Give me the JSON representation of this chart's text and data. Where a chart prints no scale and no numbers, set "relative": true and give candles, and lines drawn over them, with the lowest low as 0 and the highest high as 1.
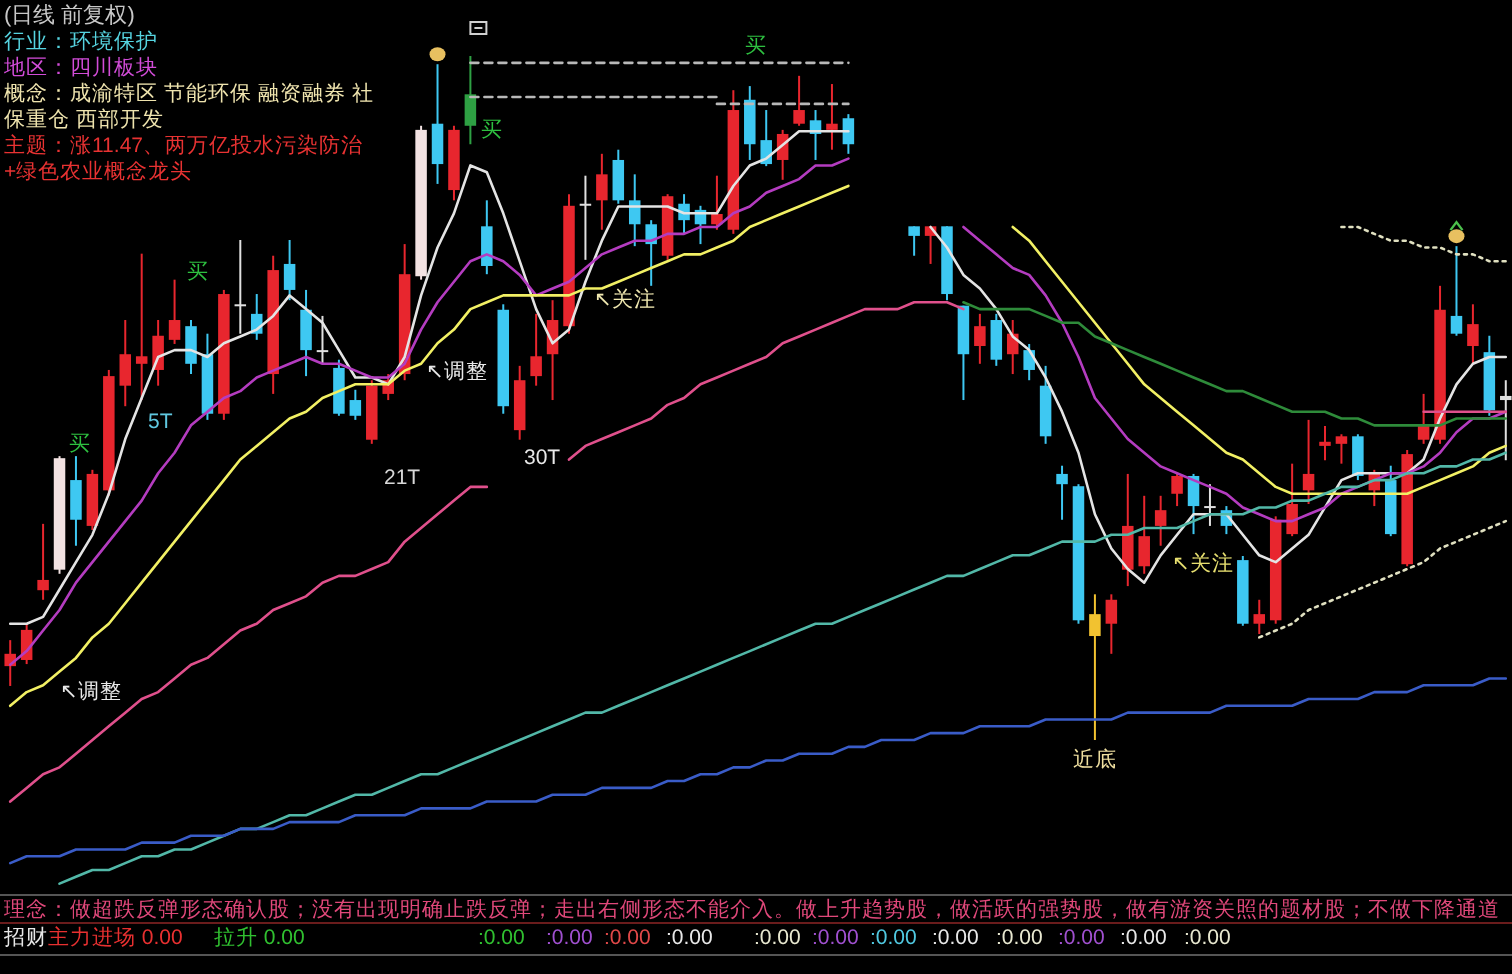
{
  "chart_data": {
    "type": "candlestick",
    "title": "(日线 前复权)",
    "relative": true,
    "categories": [
      null,
      null,
      null,
      null,
      null,
      null,
      null,
      null,
      null,
      null,
      null,
      null,
      null,
      null,
      null,
      null,
      null,
      null,
      null,
      null,
      null,
      null,
      null,
      null,
      null,
      null,
      null,
      null,
      null,
      null,
      null,
      null,
      null,
      null,
      null,
      null,
      null,
      null,
      null,
      null,
      null,
      null,
      null,
      null,
      null,
      null,
      null,
      null,
      null,
      null,
      null,
      null,
      null,
      null,
      null,
      null,
      null,
      null,
      null,
      null,
      null,
      null,
      null,
      null,
      null,
      null,
      null,
      null,
      null,
      null,
      null,
      null,
      null,
      null,
      null,
      null,
      null,
      null,
      null,
      null,
      null,
      null,
      null,
      null,
      null,
      null,
      null,
      null,
      null,
      null,
      null,
      null
    ],
    "ohlc": [
      [
        0.108,
        0.146,
        0.079,
        0.126
      ],
      [
        0.117,
        0.17,
        0.111,
        0.161
      ],
      [
        0.219,
        0.316,
        0.205,
        0.234
      ],
      [
        0.249,
        0.415,
        0.243,
        0.412
      ],
      [
        0.38,
        0.415,
        0.284,
        0.322
      ],
      [
        0.313,
        0.395,
        0.307,
        0.389
      ],
      [
        0.365,
        0.541,
        0.357,
        0.532
      ],
      [
        0.518,
        0.614,
        0.488,
        0.564
      ],
      [
        0.55,
        0.711,
        0.497,
        0.561
      ],
      [
        0.541,
        0.614,
        0.518,
        0.591
      ],
      [
        0.585,
        0.673,
        0.579,
        0.614
      ],
      [
        0.605,
        0.614,
        0.535,
        0.55
      ],
      [
        0.564,
        0.594,
        0.468,
        0.477
      ],
      [
        0.477,
        0.658,
        0.468,
        0.652
      ],
      [
        0.637,
        0.731,
        0.594,
        0.637
      ],
      [
        0.623,
        0.652,
        0.585,
        0.594
      ],
      [
        0.535,
        0.708,
        0.506,
        0.687
      ],
      [
        0.696,
        0.731,
        0.643,
        0.658
      ],
      [
        0.629,
        0.658,
        0.532,
        0.57
      ],
      [
        0.57,
        0.62,
        0.55,
        0.57
      ],
      [
        0.544,
        0.556,
        0.474,
        0.477
      ],
      [
        0.497,
        0.512,
        0.468,
        0.474
      ],
      [
        0.439,
        0.526,
        0.433,
        0.518
      ],
      [
        0.506,
        0.535,
        0.497,
        0.526
      ],
      [
        0.535,
        0.725,
        0.526,
        0.681
      ],
      [
        0.678,
        0.898,
        0.673,
        0.892
      ],
      [
        0.901,
        0.988,
        0.813,
        0.842
      ],
      [
        0.804,
        0.898,
        0.789,
        0.892
      ],
      [
        0.944,
        1.0,
        0.871,
        0.898
      ],
      [
        0.751,
        0.789,
        0.681,
        0.693
      ],
      [
        0.629,
        0.637,
        0.477,
        0.488
      ],
      [
        0.453,
        0.547,
        0.439,
        0.526
      ],
      [
        0.532,
        0.623,
        0.518,
        0.561
      ],
      [
        0.564,
        0.643,
        0.497,
        0.614
      ],
      [
        0.605,
        0.798,
        0.594,
        0.781
      ],
      [
        0.784,
        0.825,
        0.702,
        0.784
      ],
      [
        0.789,
        0.857,
        0.746,
        0.827
      ],
      [
        0.848,
        0.863,
        0.784,
        0.789
      ],
      [
        0.789,
        0.827,
        0.722,
        0.754
      ],
      [
        0.754,
        0.76,
        0.664,
        0.725
      ],
      [
        0.708,
        0.798,
        0.702,
        0.795
      ],
      [
        0.784,
        0.798,
        0.74,
        0.76
      ],
      [
        0.775,
        0.781,
        0.725,
        0.754
      ],
      [
        0.754,
        0.825,
        0.746,
        0.769
      ],
      [
        0.746,
        0.95,
        0.74,
        0.921
      ],
      [
        0.936,
        0.956,
        0.848,
        0.871
      ],
      [
        0.877,
        0.921,
        0.839,
        0.842
      ],
      [
        0.848,
        0.892,
        0.819,
        0.886
      ],
      [
        0.901,
        0.971,
        0.898,
        0.921
      ],
      [
        0.906,
        0.921,
        0.848,
        0.886
      ],
      [
        0.892,
        0.959,
        0.863,
        0.901
      ],
      [
        0.909,
        0.915,
        0.857,
        0.871
      ],
      null,
      null,
      null,
      [
        0.751,
        0.751,
        0.708,
        0.737
      ],
      [
        0.737,
        0.751,
        0.696,
        0.751
      ],
      [
        0.751,
        0.751,
        0.643,
        0.652
      ],
      [
        0.635,
        0.635,
        0.497,
        0.564
      ],
      [
        0.576,
        0.623,
        0.55,
        0.605
      ],
      [
        0.614,
        0.623,
        0.547,
        0.556
      ],
      [
        0.564,
        0.614,
        0.535,
        0.594
      ],
      [
        0.57,
        0.579,
        0.526,
        0.541
      ],
      [
        0.518,
        0.547,
        0.433,
        0.444
      ],
      [
        0.389,
        0.401,
        0.322,
        0.374
      ],
      [
        0.371,
        0.374,
        0.17,
        0.175
      ],
      [
        0.184,
        0.213,
        0.0,
        0.152
      ],
      [
        0.17,
        0.213,
        0.126,
        0.205
      ],
      [
        0.249,
        0.389,
        0.225,
        0.313
      ],
      [
        0.254,
        0.357,
        0.243,
        0.298
      ],
      [
        0.313,
        0.357,
        0.284,
        0.336
      ],
      [
        0.36,
        0.389,
        0.342,
        0.386
      ],
      [
        0.386,
        0.389,
        0.301,
        0.342
      ],
      [
        0.342,
        0.374,
        0.313,
        0.342
      ],
      [
        0.336,
        0.342,
        0.301,
        0.313
      ],
      [
        0.263,
        0.269,
        0.167,
        0.17
      ],
      [
        0.17,
        0.205,
        0.155,
        0.184
      ],
      [
        0.175,
        0.327,
        0.17,
        0.322
      ],
      [
        0.301,
        0.404,
        0.298,
        0.345
      ],
      [
        0.365,
        0.468,
        0.345,
        0.389
      ],
      [
        0.43,
        0.459,
        0.409,
        0.436
      ],
      [
        0.433,
        0.447,
        0.404,
        0.444
      ],
      [
        0.444,
        0.447,
        0.38,
        0.386
      ],
      [
        0.365,
        0.395,
        0.342,
        0.389
      ],
      [
        0.38,
        0.401,
        0.298,
        0.301
      ],
      [
        0.257,
        0.424,
        0.254,
        0.418
      ],
      [
        0.439,
        0.506,
        0.433,
        0.459
      ],
      [
        0.439,
        0.664,
        0.433,
        0.629
      ],
      [
        0.62,
        0.722,
        0.591,
        0.594
      ],
      [
        0.576,
        0.637,
        0.55,
        0.608
      ],
      [
        0.567,
        0.591,
        0.474,
        0.482
      ],
      [
        0.503,
        0.526,
        0.409,
        0.497
      ]
    ],
    "colors": [
      "#e8262e",
      "#e8262e",
      "#e8262e",
      "#f2e2e2",
      "#3ec8f2",
      "#e8262e",
      "#e8262e",
      "#e8262e",
      "#e8262e",
      "#e8262e",
      "#e8262e",
      "#3ec8f2",
      "#3ec8f2",
      "#e8262e",
      "#e0e0e0",
      "#3ec8f2",
      "#e8262e",
      "#3ec8f2",
      "#3ec8f2",
      "#e0e0e0",
      "#3ec8f2",
      "#3ec8f2",
      "#e8262e",
      "#e8262e",
      "#e8262e",
      "#f2e2e2",
      "#3ec8f2",
      "#e8262e",
      "#2ea043",
      "#3ec8f2",
      "#3ec8f2",
      "#e8262e",
      "#e8262e",
      "#e8262e",
      "#e8262e",
      "#e0e0e0",
      "#e8262e",
      "#3ec8f2",
      "#3ec8f2",
      "#3ec8f2",
      "#e8262e",
      "#3ec8f2",
      "#3ec8f2",
      "#e8262e",
      "#e8262e",
      "#3ec8f2",
      "#3ec8f2",
      "#e8262e",
      "#e8262e",
      "#3ec8f2",
      "#e8262e",
      "#3ec8f2",
      null,
      null,
      null,
      "#3ec8f2",
      "#e8262e",
      "#3ec8f2",
      "#3ec8f2",
      "#e8262e",
      "#3ec8f2",
      "#e8262e",
      "#3ec8f2",
      "#3ec8f2",
      "#3ec8f2",
      "#3ec8f2",
      "#f2c230",
      "#e8262e",
      "#e8262e",
      "#e8262e",
      "#e8262e",
      "#e8262e",
      "#3ec8f2",
      "#e0e0e0",
      "#3ec8f2",
      "#3ec8f2",
      "#e8262e",
      "#e8262e",
      "#e8262e",
      "#e8262e",
      "#e8262e",
      "#e8262e",
      "#3ec8f2",
      "#e8262e",
      "#3ec8f2",
      "#e8262e",
      "#e8262e",
      "#e8262e",
      "#3ec8f2",
      "#e8262e",
      "#3ec8f2",
      "#e0e0e0"
    ],
    "series": [
      {
        "type": "line",
        "color": "#e4e4e4",
        "values": [
          0.17,
          0.17,
          0.18,
          0.22,
          0.26,
          0.3,
          0.36,
          0.44,
          0.5,
          0.56,
          0.57,
          0.57,
          0.56,
          0.58,
          0.59,
          0.6,
          0.62,
          0.65,
          0.63,
          0.61,
          0.57,
          0.53,
          0.53,
          0.52,
          0.56,
          0.65,
          0.72,
          0.77,
          0.84,
          0.83,
          0.77,
          0.7,
          0.63,
          0.58,
          0.6,
          0.67,
          0.73,
          0.78,
          0.78,
          0.78,
          0.78,
          0.77,
          0.77,
          0.77,
          0.81,
          0.84,
          0.85,
          0.87,
          0.89,
          0.89,
          0.89,
          0.89,
          null,
          null,
          null,
          null,
          0.75,
          0.72,
          0.68,
          0.66,
          0.63,
          0.59,
          0.57,
          0.53,
          0.48,
          0.42,
          0.33,
          0.28,
          0.25,
          0.23,
          0.27,
          0.3,
          0.33,
          0.33,
          0.33,
          0.3,
          0.27,
          0.26,
          0.28,
          0.3,
          0.34,
          0.38,
          0.39,
          0.39,
          0.39,
          0.39,
          0.41,
          0.47,
          0.52,
          0.55,
          0.56,
          0.56
        ]
      },
      {
        "type": "line",
        "color": "#b43cc0",
        "values": [
          0.11,
          0.13,
          0.16,
          0.19,
          0.23,
          0.26,
          0.29,
          0.32,
          0.35,
          0.39,
          0.42,
          0.46,
          0.48,
          0.5,
          0.51,
          0.53,
          0.54,
          0.55,
          0.56,
          0.55,
          0.55,
          0.54,
          0.53,
          0.53,
          0.55,
          0.6,
          0.64,
          0.67,
          0.7,
          0.71,
          0.7,
          0.68,
          0.65,
          0.66,
          0.67,
          0.69,
          0.71,
          0.72,
          0.73,
          0.73,
          0.74,
          0.74,
          0.75,
          0.75,
          0.77,
          0.78,
          0.8,
          0.81,
          0.82,
          0.84,
          0.84,
          0.85,
          null,
          null,
          null,
          null,
          null,
          null,
          0.75,
          0.73,
          0.71,
          0.69,
          0.68,
          0.65,
          0.61,
          0.56,
          0.5,
          0.47,
          0.44,
          0.42,
          0.4,
          0.39,
          0.38,
          0.37,
          0.36,
          0.34,
          0.33,
          0.32,
          0.32,
          0.33,
          0.34,
          0.36,
          0.37,
          0.38,
          0.39,
          0.39,
          0.4,
          0.42,
          0.45,
          0.47,
          0.47,
          0.48
        ]
      },
      {
        "type": "line",
        "color": "#f2f064",
        "values": [
          0.05,
          0.07,
          0.08,
          0.1,
          0.12,
          0.15,
          0.17,
          0.2,
          0.23,
          0.26,
          0.29,
          0.32,
          0.35,
          0.38,
          0.41,
          0.43,
          0.45,
          0.47,
          0.48,
          0.5,
          0.51,
          0.52,
          0.52,
          0.52,
          0.54,
          0.55,
          0.58,
          0.6,
          0.63,
          0.64,
          0.65,
          0.65,
          0.65,
          0.65,
          0.65,
          0.66,
          0.66,
          0.67,
          0.68,
          0.69,
          0.7,
          0.71,
          0.71,
          0.72,
          0.73,
          0.75,
          0.76,
          0.77,
          0.78,
          0.79,
          0.8,
          0.81,
          null,
          null,
          null,
          null,
          null,
          null,
          null,
          null,
          null,
          0.75,
          0.73,
          0.7,
          0.67,
          0.64,
          0.61,
          0.58,
          0.55,
          0.52,
          0.5,
          0.48,
          0.46,
          0.44,
          0.42,
          0.41,
          0.39,
          0.37,
          0.36,
          0.36,
          0.36,
          0.36,
          0.36,
          0.36,
          0.36,
          0.36,
          0.37,
          0.38,
          0.39,
          0.4,
          0.42,
          0.43
        ]
      },
      {
        "type": "line",
        "color": "#e0508c",
        "values": [
          -0.09,
          -0.07,
          -0.05,
          -0.04,
          -0.02,
          0.0,
          0.02,
          0.04,
          0.06,
          0.07,
          0.09,
          0.11,
          0.12,
          0.14,
          0.16,
          0.17,
          0.19,
          0.2,
          0.21,
          0.23,
          0.24,
          0.24,
          0.25,
          0.26,
          0.29,
          0.31,
          0.33,
          0.35,
          0.37,
          0.37,
          null,
          null,
          null,
          null,
          0.41,
          0.43,
          0.44,
          0.45,
          0.46,
          0.47,
          0.49,
          0.5,
          0.52,
          0.53,
          0.54,
          0.55,
          0.56,
          0.58,
          0.59,
          0.6,
          0.61,
          0.62,
          0.63,
          0.63,
          0.63,
          0.64,
          0.64,
          0.64,
          0.63,
          null,
          null,
          null,
          null,
          null,
          null,
          null,
          null,
          null,
          null,
          null,
          null,
          null,
          null,
          null,
          null,
          null,
          null,
          null,
          null,
          null,
          null,
          null,
          null,
          null,
          null,
          null,
          0.48,
          0.48,
          0.48,
          0.48,
          0.48,
          0.48
        ]
      },
      {
        "type": "line",
        "color": "#2e8b3a",
        "values": [
          null,
          null,
          null,
          null,
          null,
          null,
          null,
          null,
          null,
          null,
          null,
          null,
          null,
          null,
          null,
          null,
          null,
          null,
          null,
          null,
          null,
          null,
          null,
          null,
          null,
          null,
          null,
          null,
          null,
          null,
          null,
          null,
          null,
          null,
          null,
          null,
          null,
          null,
          null,
          null,
          null,
          null,
          null,
          null,
          null,
          null,
          null,
          null,
          null,
          null,
          null,
          null,
          null,
          null,
          null,
          null,
          null,
          null,
          0.64,
          0.63,
          0.63,
          0.63,
          0.63,
          0.62,
          0.61,
          0.61,
          0.59,
          0.58,
          0.57,
          0.56,
          0.55,
          0.54,
          0.53,
          0.52,
          0.51,
          0.51,
          0.5,
          0.49,
          0.48,
          0.48,
          0.48,
          0.47,
          0.47,
          0.46,
          0.46,
          0.46,
          0.46,
          0.46,
          0.47,
          0.47,
          0.47,
          0.47
        ]
      },
      {
        "type": "line",
        "color": "#52b8a8",
        "values": [
          null,
          null,
          null,
          -0.21,
          -0.2,
          -0.19,
          -0.19,
          -0.18,
          -0.17,
          -0.17,
          -0.16,
          -0.16,
          -0.15,
          -0.14,
          -0.13,
          -0.13,
          -0.12,
          -0.11,
          -0.11,
          -0.1,
          -0.09,
          -0.08,
          -0.08,
          -0.07,
          -0.06,
          -0.05,
          -0.05,
          -0.04,
          -0.03,
          -0.02,
          -0.01,
          0.0,
          0.01,
          0.02,
          0.03,
          0.04,
          0.04,
          0.05,
          0.06,
          0.07,
          0.08,
          0.09,
          0.1,
          0.11,
          0.12,
          0.13,
          0.14,
          0.15,
          0.16,
          0.17,
          0.17,
          0.18,
          0.19,
          0.2,
          0.21,
          0.22,
          0.23,
          0.24,
          0.24,
          0.25,
          0.26,
          0.27,
          0.27,
          0.28,
          0.29,
          0.29,
          0.29,
          0.3,
          0.3,
          0.31,
          0.31,
          0.31,
          0.32,
          0.33,
          0.33,
          0.33,
          0.34,
          0.34,
          0.35,
          0.35,
          0.36,
          0.37,
          0.37,
          0.38,
          0.38,
          0.39,
          0.39,
          0.4,
          0.4,
          0.41,
          0.41,
          0.42
        ]
      },
      {
        "type": "line",
        "color": "#3a5cc8",
        "values": [
          -0.18,
          -0.17,
          -0.17,
          -0.17,
          -0.16,
          -0.16,
          -0.16,
          -0.16,
          -0.15,
          -0.15,
          -0.15,
          -0.14,
          -0.14,
          -0.14,
          -0.13,
          -0.13,
          -0.13,
          -0.12,
          -0.12,
          -0.12,
          -0.12,
          -0.11,
          -0.11,
          -0.11,
          -0.11,
          -0.1,
          -0.1,
          -0.1,
          -0.1,
          -0.09,
          -0.09,
          -0.09,
          -0.09,
          -0.08,
          -0.08,
          -0.08,
          -0.07,
          -0.07,
          -0.07,
          -0.07,
          -0.06,
          -0.06,
          -0.05,
          -0.05,
          -0.04,
          -0.04,
          -0.03,
          -0.03,
          -0.02,
          -0.02,
          -0.02,
          -0.01,
          -0.01,
          0.0,
          0.0,
          0.0,
          0.01,
          0.01,
          0.01,
          0.02,
          0.02,
          0.02,
          0.02,
          0.03,
          0.03,
          0.03,
          0.03,
          0.03,
          0.04,
          0.04,
          0.04,
          0.04,
          0.04,
          0.04,
          0.05,
          0.05,
          0.05,
          0.05,
          0.05,
          0.06,
          0.06,
          0.06,
          0.06,
          0.07,
          0.07,
          0.07,
          0.08,
          0.08,
          0.08,
          0.08,
          0.09,
          0.09
        ]
      },
      {
        "type": "line",
        "color": "#b8b8b8",
        "line_style": "dashed",
        "values": [
          null,
          null,
          null,
          null,
          null,
          null,
          null,
          null,
          null,
          null,
          null,
          null,
          null,
          null,
          null,
          null,
          null,
          null,
          null,
          null,
          null,
          null,
          null,
          null,
          null,
          null,
          null,
          null,
          0.99,
          0.99,
          0.99,
          0.99,
          0.99,
          0.99,
          0.99,
          0.99,
          0.99,
          0.99,
          0.99,
          0.99,
          0.99,
          0.99,
          0.99,
          0.99,
          0.99,
          0.99,
          0.99,
          0.99,
          0.99,
          0.99,
          0.99,
          0.99,
          null,
          null,
          null,
          null,
          null,
          null,
          null,
          null,
          null,
          null,
          null,
          null,
          null,
          null,
          null,
          null,
          null,
          null,
          null,
          null,
          null,
          null,
          null,
          null,
          null,
          null,
          null,
          null,
          null,
          null,
          null,
          null,
          null,
          null,
          null,
          null,
          null,
          null,
          null,
          null
        ]
      },
      {
        "type": "line",
        "color": "#b8b8b8",
        "line_style": "dashed",
        "values": [
          null,
          null,
          null,
          null,
          null,
          null,
          null,
          null,
          null,
          null,
          null,
          null,
          null,
          null,
          null,
          null,
          null,
          null,
          null,
          null,
          null,
          null,
          null,
          null,
          null,
          null,
          null,
          null,
          0.94,
          0.94,
          0.94,
          0.94,
          0.94,
          0.94,
          0.94,
          0.94,
          0.94,
          0.94,
          0.94,
          0.94,
          0.94,
          0.94,
          0.94,
          0.94,
          null,
          null,
          null,
          null,
          null,
          null,
          null,
          null,
          null,
          null,
          null,
          null,
          null,
          null,
          null,
          null,
          null,
          null,
          null,
          null,
          null,
          null,
          null,
          null,
          null,
          null,
          null,
          null,
          null,
          null,
          null,
          null,
          null,
          null,
          null,
          null,
          null,
          null,
          null,
          null,
          null,
          null,
          null,
          null,
          null,
          null,
          null,
          null
        ]
      },
      {
        "type": "line",
        "color": "#b8b8b8",
        "line_style": "dashed",
        "values": [
          null,
          null,
          null,
          null,
          null,
          null,
          null,
          null,
          null,
          null,
          null,
          null,
          null,
          null,
          null,
          null,
          null,
          null,
          null,
          null,
          null,
          null,
          null,
          null,
          null,
          null,
          null,
          null,
          null,
          null,
          null,
          null,
          null,
          null,
          null,
          null,
          null,
          null,
          null,
          null,
          null,
          null,
          null,
          0.93,
          0.93,
          0.93,
          0.93,
          0.93,
          0.93,
          0.93,
          0.93,
          0.93,
          null,
          null,
          null,
          null,
          null,
          null,
          null,
          null,
          null,
          null,
          null,
          null,
          null,
          null,
          null,
          null,
          null,
          null,
          null,
          null,
          null,
          null,
          null,
          null,
          null,
          null,
          null,
          null,
          null,
          null,
          null,
          null,
          null,
          null,
          null,
          null,
          null,
          null,
          null,
          null
        ]
      },
      {
        "type": "line",
        "color": "#e0e0c0",
        "line_style": "dotted",
        "values": [
          null,
          null,
          null,
          null,
          null,
          null,
          null,
          null,
          null,
          null,
          null,
          null,
          null,
          null,
          null,
          null,
          null,
          null,
          null,
          null,
          null,
          null,
          null,
          null,
          null,
          null,
          null,
          null,
          null,
          null,
          null,
          null,
          null,
          null,
          null,
          null,
          null,
          null,
          null,
          null,
          null,
          null,
          null,
          null,
          null,
          null,
          null,
          null,
          null,
          null,
          null,
          null,
          null,
          null,
          null,
          null,
          null,
          null,
          null,
          null,
          null,
          null,
          null,
          null,
          null,
          null,
          null,
          null,
          null,
          null,
          null,
          null,
          null,
          null,
          null,
          null,
          0.15,
          0.16,
          0.17,
          0.19,
          0.2,
          0.21,
          0.22,
          0.23,
          0.24,
          0.25,
          0.26,
          0.28,
          0.29,
          0.3,
          0.31,
          0.32
        ]
      },
      {
        "type": "line",
        "color": "#e0e0c0",
        "line_style": "dotted",
        "values": [
          null,
          null,
          null,
          null,
          null,
          null,
          null,
          null,
          null,
          null,
          null,
          null,
          null,
          null,
          null,
          null,
          null,
          null,
          null,
          null,
          null,
          null,
          null,
          null,
          null,
          null,
          null,
          null,
          null,
          null,
          null,
          null,
          null,
          null,
          null,
          null,
          null,
          null,
          null,
          null,
          null,
          null,
          null,
          null,
          null,
          null,
          null,
          null,
          null,
          null,
          null,
          null,
          null,
          null,
          null,
          null,
          null,
          null,
          null,
          null,
          null,
          null,
          null,
          null,
          null,
          null,
          null,
          null,
          null,
          null,
          null,
          null,
          null,
          null,
          null,
          null,
          null,
          null,
          null,
          null,
          null,
          0.75,
          0.75,
          0.74,
          0.73,
          0.73,
          0.72,
          0.72,
          0.71,
          0.71,
          0.7,
          0.7
        ]
      }
    ],
    "annotations": [
      "行业：环境保护",
      "地区：四川板块",
      "概念：成渝特区 节能环保 融资融券 社保重仓 西部开发",
      "主题：涨11.47、两万亿投水污染防治+绿色农业概念龙头",
      "↖调整",
      "↖调整",
      "↖关注",
      "↖关注",
      {
        "text": "近底",
        "y": 0
      },
      "买",
      "买",
      "买",
      "买",
      "5T",
      "21T",
      "30T",
      "理念：做超跌反弹形态确认股；没有出现明确止跌反弹；走出右侧形态不能介入。做上升趋势股，做活跃的强势股，做有游资关照的题材股；不做下降通道",
      "招财",
      "主力进场 0.00",
      "拉升 0.00",
      ":0.00",
      ":0.00",
      ":0.00",
      ":0.00",
      ":0.00",
      ":0.00",
      ":0.00",
      ":0.00",
      ":0.00",
      ":0.00",
      ":0.00",
      ":0.00"
    ]
  }
}
